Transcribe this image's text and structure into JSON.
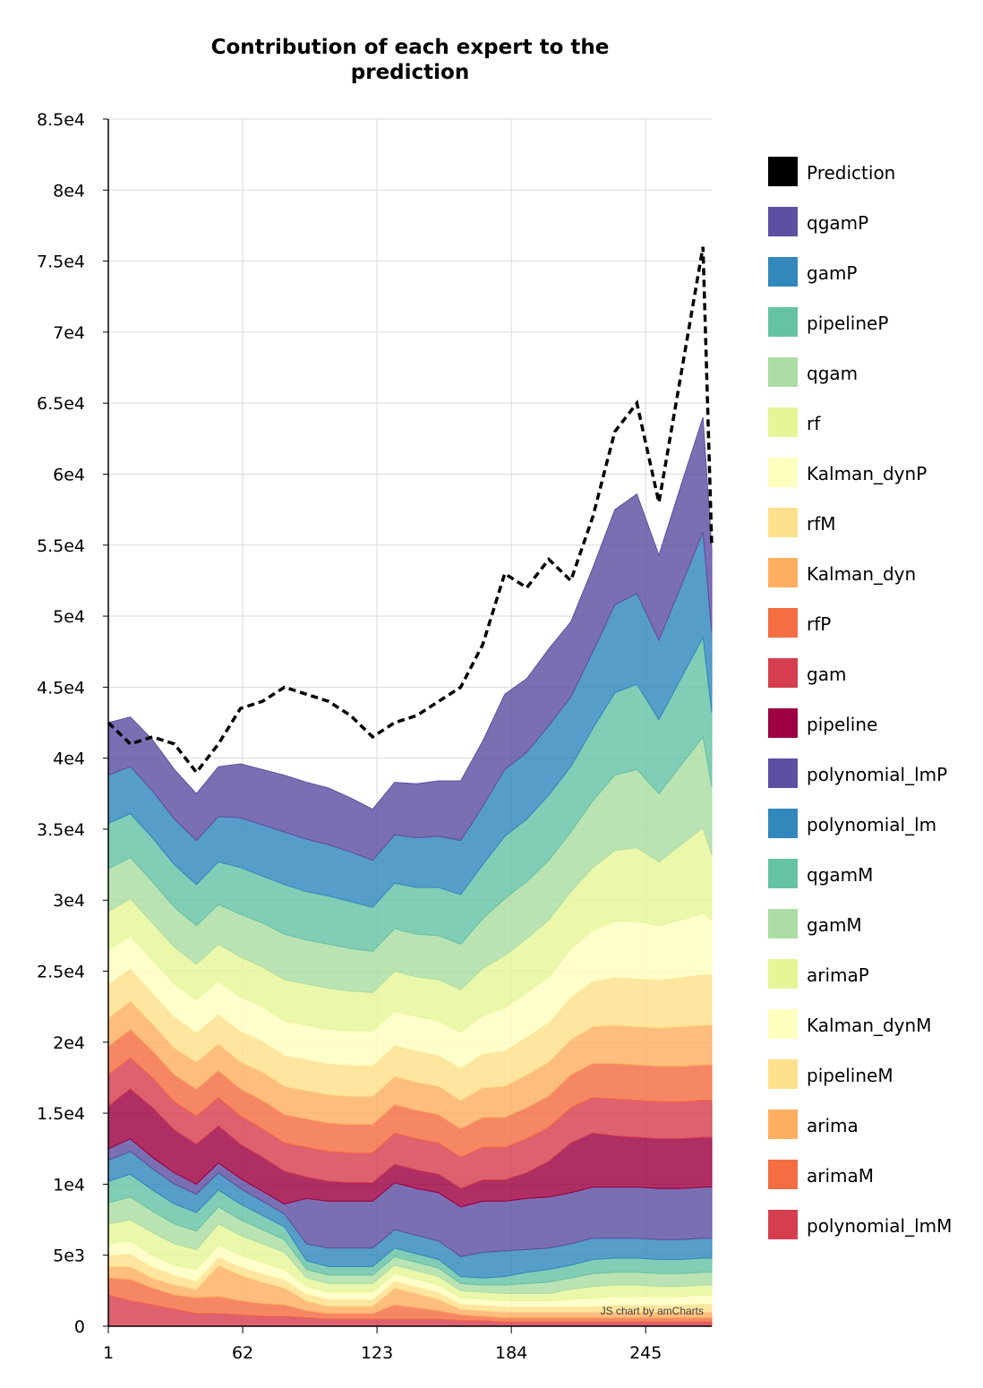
{
  "chart_data": {
    "type": "area",
    "stacked": true,
    "title_line1": "Contribution of each expert to the",
    "title_line2": "prediction",
    "xlabel": "",
    "ylabel": "",
    "x_range": [
      1,
      275
    ],
    "x_ticks": [
      "1",
      "62",
      "123",
      "184",
      "245"
    ],
    "y_range": [
      0,
      85000
    ],
    "y_ticks": [
      "0",
      "5e3",
      "1e4",
      "1.5e4",
      "2e4",
      "2.5e4",
      "3e4",
      "3.5e4",
      "4e4",
      "4.5e4",
      "5e4",
      "5.5e4",
      "6e4",
      "6.5e4",
      "7e4",
      "7.5e4",
      "8e4",
      "8.5e4"
    ],
    "grid": true,
    "legend_position": "right",
    "credit": "JS chart by amCharts",
    "prediction": {
      "name": "Prediction",
      "color": "#000000",
      "style": "dashed",
      "x": [
        1,
        11,
        21,
        31,
        41,
        51,
        61,
        71,
        81,
        91,
        101,
        111,
        121,
        131,
        141,
        151,
        161,
        171,
        181,
        191,
        201,
        211,
        221,
        231,
        241,
        251,
        261,
        271,
        275
      ],
      "values": [
        42500,
        41000,
        41500,
        41000,
        39000,
        41000,
        43500,
        44000,
        45000,
        44500,
        44000,
        43000,
        41500,
        42500,
        43000,
        44000,
        45000,
        48000,
        53000,
        52000,
        54000,
        52500,
        57000,
        63000,
        65000,
        58000,
        67000,
        76000,
        55000
      ]
    },
    "series": [
      {
        "name": "polynomial_lmM",
        "color": "#d53e4f",
        "values": [
          2200,
          1800,
          1500,
          1200,
          900,
          900,
          800,
          700,
          700,
          600,
          500,
          500,
          500,
          500,
          500,
          500,
          400,
          400,
          300,
          300,
          300,
          300,
          300,
          300,
          300,
          300,
          300,
          300,
          300
        ]
      },
      {
        "name": "arimaM",
        "color": "#f46d43",
        "values": [
          1200,
          1500,
          1200,
          1000,
          1100,
          1200,
          1000,
          900,
          800,
          500,
          400,
          400,
          400,
          1000,
          800,
          600,
          400,
          300,
          300,
          300,
          300,
          300,
          300,
          300,
          300,
          300,
          300,
          300,
          300
        ]
      },
      {
        "name": "arima",
        "color": "#fdae61",
        "values": [
          800,
          900,
          700,
          700,
          600,
          2200,
          1800,
          1500,
          1200,
          700,
          500,
          500,
          500,
          1200,
          1000,
          800,
          400,
          400,
          400,
          400,
          400,
          400,
          400,
          400,
          400,
          400,
          400,
          400,
          400
        ]
      },
      {
        "name": "pipelineM",
        "color": "#fee08b",
        "values": [
          800,
          900,
          800,
          700,
          600,
          600,
          600,
          600,
          600,
          500,
          500,
          500,
          500,
          500,
          500,
          500,
          400,
          400,
          400,
          400,
          400,
          400,
          400,
          500,
          500,
          500,
          500,
          600,
          600
        ]
      },
      {
        "name": "Kalman_dynM",
        "color": "#ffffbf",
        "values": [
          800,
          900,
          800,
          700,
          800,
          800,
          800,
          800,
          700,
          500,
          500,
          500,
          500,
          500,
          500,
          500,
          400,
          400,
          400,
          400,
          400,
          500,
          600,
          600,
          600,
          600,
          600,
          600,
          600
        ]
      },
      {
        "name": "arimaP",
        "color": "#e6f598",
        "values": [
          1400,
          1500,
          1600,
          1500,
          1400,
          1500,
          1400,
          1300,
          1200,
          600,
          600,
          600,
          600,
          600,
          600,
          600,
          500,
          500,
          500,
          500,
          500,
          700,
          800,
          800,
          800,
          700,
          700,
          700,
          700
        ]
      },
      {
        "name": "gamM",
        "color": "#abdda4",
        "values": [
          1500,
          1600,
          1500,
          1400,
          1300,
          1200,
          1100,
          1000,
          900,
          600,
          600,
          600,
          600,
          600,
          600,
          600,
          500,
          500,
          600,
          700,
          800,
          800,
          900,
          900,
          900,
          900,
          900,
          900,
          900
        ]
      },
      {
        "name": "qgamM",
        "color": "#66c2a5",
        "values": [
          1500,
          1600,
          1500,
          1400,
          1300,
          1200,
          1100,
          1000,
          900,
          600,
          600,
          600,
          600,
          600,
          600,
          600,
          500,
          500,
          600,
          800,
          900,
          900,
          1000,
          1000,
          1000,
          1000,
          1000,
          1000,
          1000
        ]
      },
      {
        "name": "polynomial_lm",
        "color": "#3288bd",
        "values": [
          1500,
          1600,
          1500,
          1400,
          1300,
          1200,
          1100,
          1000,
          900,
          1200,
          1300,
          1300,
          1300,
          1300,
          1300,
          1300,
          1400,
          1800,
          1800,
          1600,
          1500,
          1500,
          1500,
          1400,
          1400,
          1400,
          1400,
          1400,
          1400
        ]
      },
      {
        "name": "polynomial_lmP",
        "color": "#5e4fa2",
        "values": [
          800,
          900,
          800,
          800,
          700,
          700,
          700,
          700,
          700,
          3200,
          3300,
          3300,
          3300,
          3300,
          3300,
          3400,
          3500,
          3600,
          3500,
          3600,
          3600,
          3600,
          3600,
          3600,
          3600,
          3600,
          3600,
          3600,
          3600
        ]
      },
      {
        "name": "pipeline",
        "color": "#9e0142",
        "values": [
          3000,
          3500,
          3500,
          3000,
          2800,
          2600,
          2400,
          2400,
          2300,
          1500,
          1400,
          1300,
          1300,
          1300,
          1300,
          1300,
          1300,
          1500,
          1500,
          1800,
          2500,
          3500,
          3800,
          3600,
          3500,
          3500,
          3500,
          3500,
          3500
        ]
      },
      {
        "name": "gam",
        "color": "#d53e4f",
        "values": [
          2200,
          2200,
          2100,
          2000,
          2000,
          2000,
          2000,
          2000,
          2000,
          2100,
          2100,
          2100,
          2100,
          2200,
          2200,
          2200,
          2200,
          2300,
          2300,
          2400,
          2400,
          2500,
          2500,
          2600,
          2600,
          2600,
          2600,
          2600,
          2600
        ]
      },
      {
        "name": "rfP",
        "color": "#f46d43",
        "values": [
          2000,
          2000,
          1900,
          1900,
          1900,
          1900,
          1900,
          2000,
          2000,
          2000,
          2000,
          2000,
          2000,
          2000,
          2000,
          2000,
          2000,
          2100,
          2100,
          2200,
          2200,
          2300,
          2400,
          2500,
          2500,
          2500,
          2500,
          2500,
          2500
        ]
      },
      {
        "name": "Kalman_dyn",
        "color": "#fdae61",
        "values": [
          2000,
          2000,
          1900,
          1900,
          1900,
          1900,
          1900,
          2000,
          2000,
          2000,
          2000,
          2000,
          2000,
          2000,
          2000,
          2000,
          2000,
          2100,
          2200,
          2300,
          2400,
          2500,
          2600,
          2700,
          2700,
          2700,
          2800,
          2800,
          2800
        ]
      },
      {
        "name": "rfM",
        "color": "#fee08b",
        "values": [
          2400,
          2300,
          2200,
          2200,
          2100,
          2100,
          2200,
          2200,
          2200,
          2200,
          2200,
          2200,
          2200,
          2200,
          2200,
          2200,
          2300,
          2400,
          2500,
          2700,
          2800,
          3000,
          3200,
          3400,
          3400,
          3400,
          3500,
          3600,
          3600
        ]
      },
      {
        "name": "Kalman_dynP",
        "color": "#ffffbf",
        "values": [
          2400,
          2300,
          2300,
          2300,
          2300,
          2300,
          2400,
          2400,
          2400,
          2400,
          2400,
          2400,
          2400,
          2400,
          2400,
          2400,
          2500,
          2700,
          3000,
          3100,
          3200,
          3400,
          3600,
          3900,
          4000,
          3800,
          4000,
          4300,
          3800
        ]
      },
      {
        "name": "rf",
        "color": "#e6f598",
        "values": [
          2700,
          2600,
          2600,
          2600,
          2500,
          2600,
          2800,
          2800,
          2900,
          2900,
          2900,
          2800,
          2700,
          2800,
          2800,
          2900,
          3000,
          3300,
          3700,
          3800,
          4000,
          4000,
          4400,
          5000,
          5200,
          4500,
          5300,
          6000,
          4600
        ]
      },
      {
        "name": "qgam",
        "color": "#abdda4",
        "values": [
          3000,
          2900,
          2900,
          2800,
          2700,
          2800,
          3000,
          3100,
          3200,
          3100,
          3100,
          3000,
          2900,
          3000,
          3000,
          3100,
          3200,
          3500,
          4000,
          4000,
          4200,
          4200,
          4700,
          5300,
          5500,
          4800,
          5600,
          6400,
          4800
        ]
      },
      {
        "name": "pipelineP",
        "color": "#66c2a5",
        "values": [
          3200,
          3100,
          3100,
          3000,
          2900,
          3000,
          3300,
          3300,
          3500,
          3400,
          3400,
          3300,
          3100,
          3200,
          3300,
          3400,
          3500,
          3800,
          4400,
          4400,
          4600,
          4600,
          5100,
          5800,
          6000,
          5200,
          6100,
          7000,
          5200
        ]
      },
      {
        "name": "gamP",
        "color": "#3288bd",
        "values": [
          3400,
          3300,
          3300,
          3200,
          3100,
          3200,
          3500,
          3600,
          3700,
          3700,
          3600,
          3500,
          3300,
          3400,
          3500,
          3600,
          3800,
          4100,
          4700,
          4700,
          4900,
          4900,
          5400,
          6200,
          6400,
          5600,
          6500,
          7400,
          5600
        ]
      },
      {
        "name": "qgamP",
        "color": "#5e4fa2",
        "values": [
          3700,
          3500,
          3600,
          3500,
          3300,
          3500,
          3800,
          3900,
          4000,
          4000,
          4000,
          3800,
          3600,
          3700,
          3800,
          3900,
          4200,
          4600,
          5300,
          5200,
          5400,
          5300,
          5900,
          6700,
          7000,
          6000,
          7100,
          8100,
          6000
        ]
      }
    ]
  }
}
